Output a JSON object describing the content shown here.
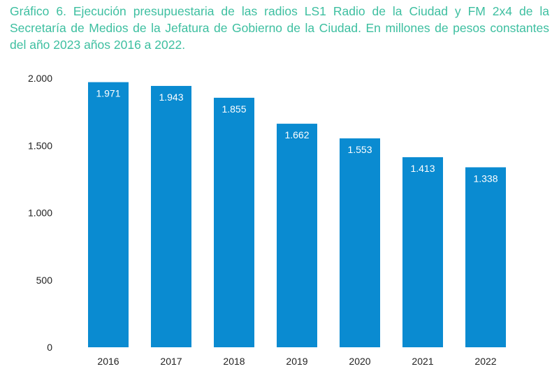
{
  "chart_data": {
    "type": "bar",
    "title": "Gráfico 6. Ejecución presupuestaria de las radios LS1 Radio de la Ciudad y FM 2x4 de la Secretaría de Medios de la Jefatura de Gobierno de la Ciudad. En millones de pesos constantes del año 2023 años 2016 a 2022.",
    "categories": [
      "2016",
      "2017",
      "2018",
      "2019",
      "2020",
      "2021",
      "2022"
    ],
    "values": [
      1971,
      1943,
      1855,
      1662,
      1553,
      1413,
      1338
    ],
    "value_labels": [
      "1.971",
      "1.943",
      "1.855",
      "1.662",
      "1.553",
      "1.413",
      "1.338"
    ],
    "yticks": [
      0,
      500,
      1000,
      1500,
      2000
    ],
    "ytick_labels": [
      "0",
      "500",
      "1.000",
      "1.500",
      "2.000"
    ],
    "ylim": [
      0,
      2000
    ],
    "xlabel": "",
    "ylabel": "",
    "grid": false,
    "legend": "none",
    "colors": {
      "bar": "#0a8bd1",
      "title": "#3dbfa0",
      "label_inside": "#ffffff",
      "tick": "#222222"
    }
  }
}
